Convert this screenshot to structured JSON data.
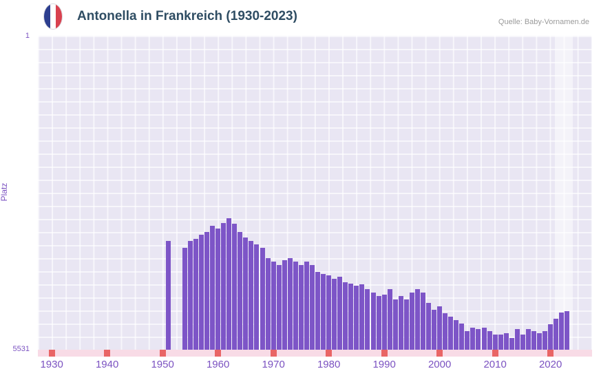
{
  "header": {
    "title": "Antonella in Frankreich (1930-2023)",
    "source": "Quelle: Baby-Vornamen.de",
    "flag_icon": "france-flag"
  },
  "axes": {
    "y_label": "Platz",
    "y_top_tick": "1",
    "y_bottom_tick": "5531"
  },
  "chart_data": {
    "type": "bar",
    "title": "Antonella in Frankreich (1930-2023)",
    "xlabel": "",
    "ylabel": "Platz",
    "grid": true,
    "x_domain": [
      1927.5,
      2027.5
    ],
    "x_ticks": [
      1930,
      1940,
      1950,
      1960,
      1970,
      1980,
      1990,
      2000,
      2010,
      2020
    ],
    "y_axis": {
      "min": 1,
      "max": 5531,
      "inverted": true,
      "top_label": "1",
      "bottom_label": "5531"
    },
    "highlight_band": {
      "from": 2020.8,
      "to": 2024.0
    },
    "colors": {
      "bar": "#7d55c7",
      "plot_background": "#e9e6f3",
      "grid_line": "#ffffff",
      "axis_text": "#7b52c1",
      "title_text": "#2f4d63",
      "source_text": "#9a9a9a",
      "stripe_background": "#f8dbe6",
      "stripe_marker": "#e96565",
      "flag_blue": "#2d3f8f",
      "flag_red": "#d8414f"
    },
    "series": [
      {
        "name": "Platz",
        "points": [
          [
            1951,
            3620
          ],
          [
            1954,
            3740
          ],
          [
            1955,
            3620
          ],
          [
            1956,
            3580
          ],
          [
            1957,
            3510
          ],
          [
            1958,
            3460
          ],
          [
            1959,
            3350
          ],
          [
            1960,
            3400
          ],
          [
            1961,
            3300
          ],
          [
            1962,
            3210
          ],
          [
            1963,
            3310
          ],
          [
            1964,
            3460
          ],
          [
            1965,
            3550
          ],
          [
            1966,
            3610
          ],
          [
            1967,
            3670
          ],
          [
            1968,
            3740
          ],
          [
            1969,
            3920
          ],
          [
            1970,
            3980
          ],
          [
            1971,
            4040
          ],
          [
            1972,
            3950
          ],
          [
            1973,
            3920
          ],
          [
            1974,
            3980
          ],
          [
            1975,
            4040
          ],
          [
            1976,
            3980
          ],
          [
            1977,
            4040
          ],
          [
            1978,
            4160
          ],
          [
            1979,
            4200
          ],
          [
            1980,
            4220
          ],
          [
            1981,
            4280
          ],
          [
            1982,
            4250
          ],
          [
            1983,
            4340
          ],
          [
            1984,
            4370
          ],
          [
            1985,
            4400
          ],
          [
            1986,
            4380
          ],
          [
            1987,
            4460
          ],
          [
            1988,
            4530
          ],
          [
            1989,
            4590
          ],
          [
            1990,
            4560
          ],
          [
            1991,
            4460
          ],
          [
            1992,
            4650
          ],
          [
            1993,
            4590
          ],
          [
            1994,
            4650
          ],
          [
            1995,
            4530
          ],
          [
            1996,
            4460
          ],
          [
            1997,
            4530
          ],
          [
            1998,
            4710
          ],
          [
            1999,
            4830
          ],
          [
            2000,
            4770
          ],
          [
            2001,
            4890
          ],
          [
            2002,
            4950
          ],
          [
            2003,
            5010
          ],
          [
            2004,
            5070
          ],
          [
            2005,
            5200
          ],
          [
            2006,
            5140
          ],
          [
            2007,
            5170
          ],
          [
            2008,
            5140
          ],
          [
            2009,
            5200
          ],
          [
            2010,
            5260
          ],
          [
            2011,
            5260
          ],
          [
            2012,
            5240
          ],
          [
            2013,
            5320
          ],
          [
            2014,
            5170
          ],
          [
            2015,
            5260
          ],
          [
            2016,
            5170
          ],
          [
            2017,
            5200
          ],
          [
            2018,
            5240
          ],
          [
            2019,
            5200
          ],
          [
            2020,
            5080
          ],
          [
            2021,
            4990
          ],
          [
            2022,
            4880
          ],
          [
            2023,
            4850
          ]
        ]
      }
    ]
  }
}
